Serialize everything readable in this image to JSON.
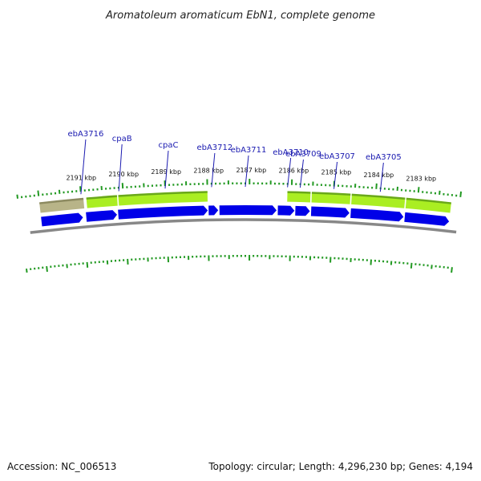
{
  "title": "Aromatoleum aromaticum EbN1, complete genome",
  "footer": {
    "accession": "Accession: NC_006513",
    "summary": "Topology: circular; Length: 4,296,230 bp; Genes: 4,194"
  },
  "colors": {
    "forward_cds": "#0000e8",
    "reverse_cds": "#aaee22",
    "reverse_cds_other": "#b8b488",
    "backbone": "#888888",
    "tick": "#229922",
    "gene_label": "#1a1ab0"
  },
  "scale": {
    "unit": "kbp",
    "labels": [
      {
        "kbp": 2191,
        "text": "2191 kbp"
      },
      {
        "kbp": 2190,
        "text": "2190 kbp"
      },
      {
        "kbp": 2189,
        "text": "2189 kbp"
      },
      {
        "kbp": 2188,
        "text": "2188 kbp"
      },
      {
        "kbp": 2187,
        "text": "2187 kbp"
      },
      {
        "kbp": 2186,
        "text": "2186 kbp"
      },
      {
        "kbp": 2185,
        "text": "2185 kbp"
      },
      {
        "kbp": 2184,
        "text": "2184 kbp"
      },
      {
        "kbp": 2183,
        "text": "2183 kbp"
      }
    ]
  },
  "gene_labels": [
    {
      "name": "ebA3716",
      "kbp": 2191.0
    },
    {
      "name": "cpaB",
      "kbp": 2190.1
    },
    {
      "name": "cpaC",
      "kbp": 2189.0
    },
    {
      "name": "ebA3712",
      "kbp": 2187.9
    },
    {
      "name": "ebA3711",
      "kbp": 2187.1
    },
    {
      "name": "ebA3710",
      "kbp": 2186.1
    },
    {
      "name": "ebA3709",
      "kbp": 2185.8
    },
    {
      "name": "ebA3707",
      "kbp": 2185.0
    },
    {
      "name": "ebA3705",
      "kbp": 2183.9
    }
  ],
  "forward_genes": [
    {
      "start": 2192.0,
      "end": 2191.0
    },
    {
      "start": 2190.92,
      "end": 2190.18
    },
    {
      "start": 2190.15,
      "end": 2188.0
    },
    {
      "start": 2187.98,
      "end": 2187.75
    },
    {
      "start": 2187.72,
      "end": 2186.35
    },
    {
      "start": 2186.32,
      "end": 2185.92
    },
    {
      "start": 2185.9,
      "end": 2185.55
    },
    {
      "start": 2185.52,
      "end": 2184.6
    },
    {
      "start": 2184.57,
      "end": 2183.3
    },
    {
      "start": 2183.27,
      "end": 2182.2
    }
  ],
  "reverse_genes": [
    {
      "start": 2192.0,
      "end": 2190.95,
      "type": "other"
    },
    {
      "start": 2190.88,
      "end": 2190.15,
      "type": "cds"
    },
    {
      "start": 2190.12,
      "end": 2188.0,
      "type": "cds"
    },
    {
      "start": 2186.1,
      "end": 2185.55,
      "type": "cds"
    },
    {
      "start": 2185.52,
      "end": 2184.6,
      "type": "cds"
    },
    {
      "start": 2184.57,
      "end": 2183.3,
      "type": "cds"
    },
    {
      "start": 2183.27,
      "end": 2182.2,
      "type": "cds"
    }
  ]
}
